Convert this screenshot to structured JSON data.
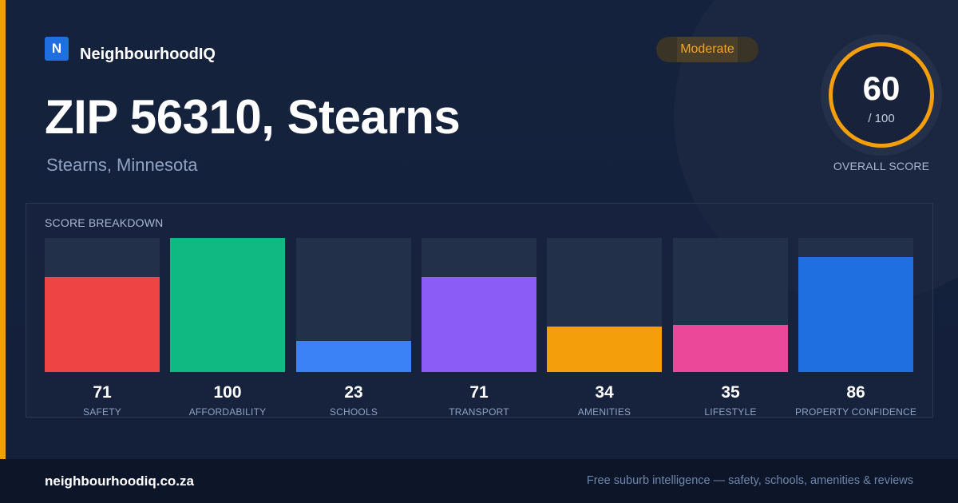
{
  "brand": {
    "icon_letter": "N",
    "name": "NeighbourhoodIQ"
  },
  "header": {
    "title": "ZIP 56310, Stearns",
    "subtitle": "Stearns, Minnesota",
    "rating_label": "Moderate"
  },
  "overall": {
    "score": "60",
    "max": "/ 100",
    "caption": "OVERALL SCORE"
  },
  "breakdown": {
    "title": "SCORE BREAKDOWN"
  },
  "chart_data": {
    "type": "bar",
    "title": "SCORE BREAKDOWN",
    "categories": [
      "SAFETY",
      "AFFORDABILITY",
      "SCHOOLS",
      "TRANSPORT",
      "AMENITIES",
      "LIFESTYLE",
      "PROPERTY CONFIDENCE"
    ],
    "values": [
      71,
      100,
      23,
      71,
      34,
      35,
      86
    ],
    "colors": [
      "#ef4444",
      "#10b981",
      "#3b82f6",
      "#8b5cf6",
      "#f59e0b",
      "#ec4899",
      "#1f6fe0"
    ],
    "ylim": [
      0,
      100
    ],
    "grid": false
  },
  "footer": {
    "domain": "neighbourhoodiq.co.za",
    "tagline": "Free suburb intelligence — safety, schools, amenities & reviews"
  },
  "colors": {
    "accent": "#f59e0b",
    "brand": "#1f6fe0",
    "background": "#14213b"
  }
}
